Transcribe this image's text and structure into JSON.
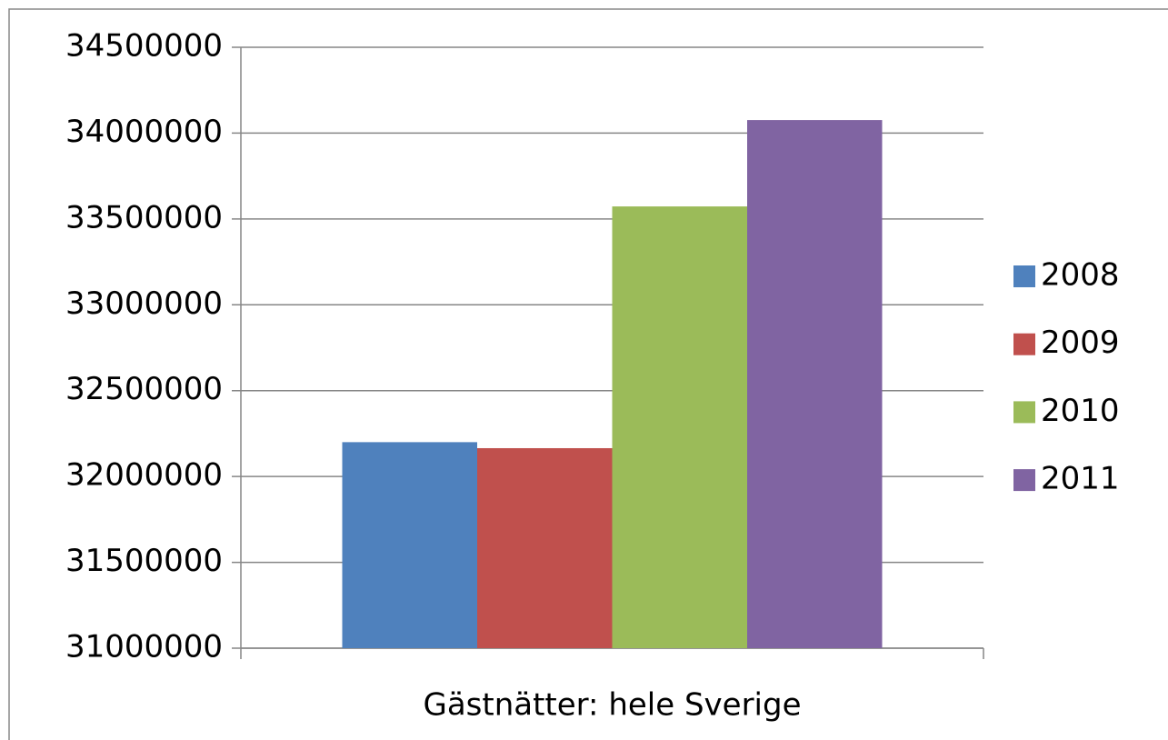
{
  "chart_data": {
    "type": "bar",
    "categories": [
      "Gästnätter: hele Sverige"
    ],
    "series": [
      {
        "name": "2008",
        "color": "#4f81bd",
        "values": [
          32200000
        ]
      },
      {
        "name": "2009",
        "color": "#c0504d",
        "values": [
          32165000
        ]
      },
      {
        "name": "2010",
        "color": "#9bbb59",
        "values": [
          33573000
        ]
      },
      {
        "name": "2011",
        "color": "#8064a2",
        "values": [
          34076000
        ]
      }
    ],
    "ylim": [
      31000000,
      34500000
    ],
    "yticks": [
      31000000,
      31500000,
      32000000,
      32500000,
      33000000,
      33500000,
      34000000,
      34500000
    ],
    "grid": true,
    "legend": "right"
  }
}
